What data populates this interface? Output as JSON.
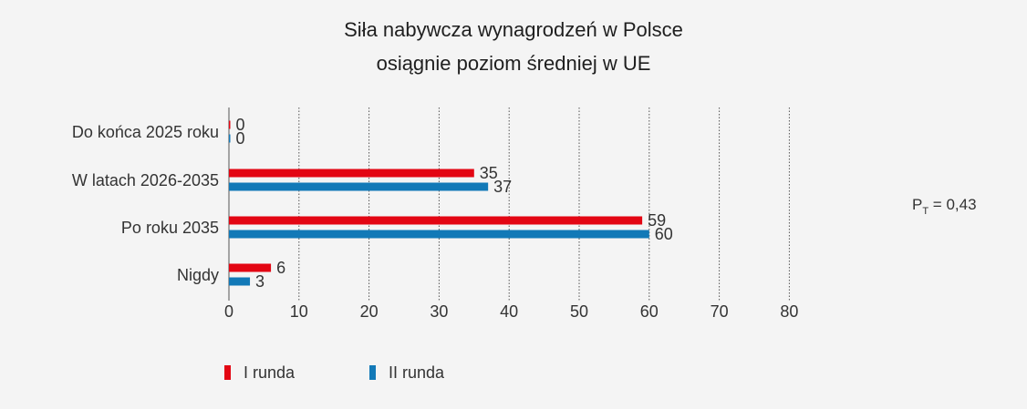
{
  "chart_data": {
    "type": "bar",
    "orientation": "horizontal",
    "title_lines": [
      "Siła nabywcza wynagrodzeń w Polsce",
      "osiągnie poziom średniej w UE"
    ],
    "categories": [
      "Do końca 2025 roku",
      "W latach 2026-2035",
      "Po roku 2035",
      "Nigdy"
    ],
    "series": [
      {
        "name": "I runda",
        "color": "#e30613",
        "values": [
          0,
          35,
          59,
          6
        ]
      },
      {
        "name": "II runda",
        "color": "#1279b7",
        "values": [
          0,
          37,
          60,
          3
        ]
      }
    ],
    "xlim": [
      0,
      80
    ],
    "xticks": [
      "0",
      "10",
      "20",
      "30",
      "40",
      "50",
      "60",
      "70",
      "80"
    ],
    "grid": "vertical dotted",
    "legend_position": "bottom-left",
    "annotation": {
      "symbol": "P",
      "subscript": "T",
      "text": " = 0,43"
    }
  }
}
